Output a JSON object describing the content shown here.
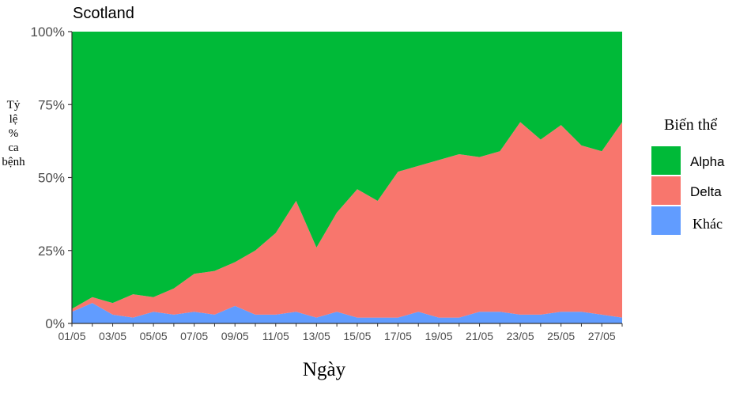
{
  "chart_data": {
    "type": "area",
    "stacked": "percent",
    "title": "Scotland",
    "xlabel": "Ngày",
    "ylabel": [
      "Tỷ",
      "lệ",
      "%",
      "ca",
      "bệnh"
    ],
    "x": [
      "01/05",
      "02/05",
      "03/05",
      "04/05",
      "05/05",
      "06/05",
      "07/05",
      "08/05",
      "09/05",
      "10/05",
      "11/05",
      "12/05",
      "13/05",
      "14/05",
      "15/05",
      "16/05",
      "17/05",
      "18/05",
      "19/05",
      "20/05",
      "21/05",
      "22/05",
      "23/05",
      "24/05",
      "25/05",
      "26/05",
      "27/05",
      "28/05"
    ],
    "x_tick_labels": [
      "01/05",
      "03/05",
      "05/05",
      "07/05",
      "09/05",
      "11/05",
      "13/05",
      "15/05",
      "17/05",
      "19/05",
      "21/05",
      "23/05",
      "25/05",
      "27/05"
    ],
    "y_tick_labels": [
      "0%",
      "25%",
      "50%",
      "75%",
      "100%"
    ],
    "ylim": [
      0,
      100
    ],
    "legend_title": "Biến thể",
    "legend_position": "right",
    "grid": false,
    "series": [
      {
        "name": "Khác",
        "color": "#619CFF",
        "values": [
          4,
          7,
          3,
          2,
          4,
          3,
          4,
          3,
          6,
          3,
          3,
          4,
          2,
          4,
          2,
          2,
          2,
          4,
          2,
          2,
          4,
          4,
          3,
          3,
          4,
          4,
          3,
          2
        ]
      },
      {
        "name": "Delta",
        "color": "#F8766D",
        "values": [
          1,
          2,
          4,
          8,
          5,
          9,
          13,
          15,
          15,
          22,
          28,
          38,
          24,
          34,
          44,
          40,
          50,
          50,
          54,
          56,
          53,
          55,
          66,
          60,
          64,
          57,
          56,
          67
        ]
      },
      {
        "name": "Alpha",
        "color": "#00BA38",
        "values": [
          95,
          91,
          93,
          90,
          91,
          88,
          83,
          82,
          79,
          75,
          69,
          58,
          74,
          62,
          54,
          58,
          48,
          46,
          44,
          42,
          43,
          41,
          31,
          37,
          32,
          39,
          41,
          31
        ]
      }
    ]
  }
}
